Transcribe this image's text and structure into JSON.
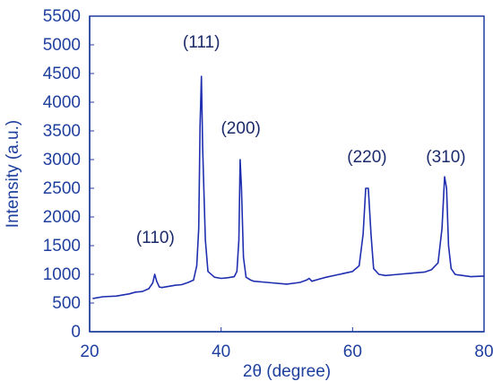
{
  "chart_data": {
    "type": "line",
    "title": "",
    "xlabel": "2θ (degree)",
    "ylabel": "Intensity (a.u.)",
    "xlim": [
      20,
      80
    ],
    "ylim": [
      0,
      5500
    ],
    "xticks": [
      20,
      40,
      60,
      80
    ],
    "yticks": [
      0,
      500,
      1000,
      1500,
      2000,
      2500,
      3000,
      3500,
      4000,
      4500,
      5000,
      5500
    ],
    "grid": false,
    "legend": "none",
    "series": [
      {
        "color": "#1f2fb0",
        "x": [
          20.5,
          22,
          24,
          26,
          27,
          28,
          29,
          29.6,
          29.9,
          30.2,
          30.6,
          31,
          32,
          33,
          34,
          35,
          35.8,
          36.3,
          36.6,
          36.8,
          37.0,
          37.2,
          37.6,
          38,
          39,
          40,
          41,
          42,
          42.4,
          42.7,
          42.9,
          43.1,
          43.4,
          43.8,
          44.5,
          45,
          47,
          50,
          52,
          53,
          53.4,
          53.8,
          55,
          56,
          58,
          60,
          61,
          61.6,
          62.0,
          62.4,
          62.8,
          63.2,
          64,
          65,
          67,
          69,
          71,
          72,
          73,
          73.6,
          74.0,
          74.3,
          74.6,
          75,
          75.6,
          76,
          78,
          80
        ],
        "y": [
          580,
          610,
          620,
          660,
          690,
          700,
          750,
          850,
          1000,
          880,
          780,
          770,
          790,
          810,
          820,
          860,
          900,
          1150,
          1800,
          3600,
          4450,
          3200,
          1600,
          1050,
          950,
          930,
          940,
          960,
          1050,
          1600,
          3000,
          2500,
          1300,
          950,
          900,
          880,
          860,
          830,
          860,
          900,
          930,
          880,
          920,
          950,
          1000,
          1050,
          1150,
          1700,
          2500,
          2500,
          1700,
          1100,
          1000,
          980,
          1000,
          1020,
          1040,
          1080,
          1200,
          1800,
          2700,
          2500,
          1500,
          1100,
          1000,
          990,
          960,
          970
        ]
      }
    ],
    "annotations": [
      {
        "text": "(110)",
        "x": 30,
        "y": 1550
      },
      {
        "text": "(111)",
        "x": 37.0,
        "y": 4950
      },
      {
        "text": "(200)",
        "x": 43.0,
        "y": 3450
      },
      {
        "text": "(220)",
        "x": 62.2,
        "y": 2950
      },
      {
        "text": "(310)",
        "x": 74.2,
        "y": 2950
      }
    ]
  }
}
